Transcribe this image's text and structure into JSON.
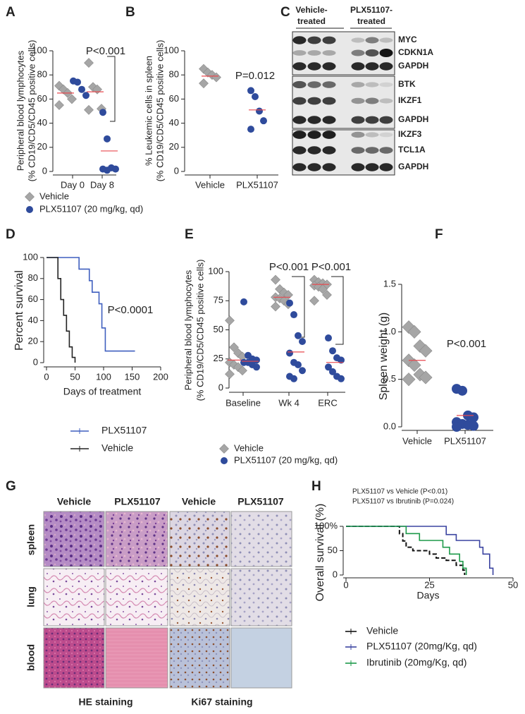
{
  "panels": [
    "A",
    "B",
    "C",
    "D",
    "E",
    "F",
    "G",
    "H"
  ],
  "chart_data": [
    {
      "type": "scatter",
      "ylabel": [
        "Peripheral blood lymphocytes",
        "(% CD19/CD5/CD45 positive cells)"
      ],
      "categories": [
        "Day 0",
        "Day 8"
      ],
      "ylim": [
        0,
        100
      ],
      "yticks": [
        0,
        20,
        40,
        60,
        80,
        100
      ],
      "annotations": [
        "P<0.001"
      ],
      "mean_color": "#e8494f",
      "series": [
        {
          "name": "Vehicle",
          "color": "#a6a6a6",
          "marker": "diamond",
          "values": [
            [
              71,
              68,
              65,
              60,
              55
            ],
            [
              90,
              70,
              68,
              52,
              51
            ]
          ],
          "means": [
            65,
            66
          ]
        },
        {
          "name": "PLX51107 (20 mg/kg, qd)",
          "color": "#2f4b9c",
          "marker": "circle",
          "values": [
            [
              75,
              74,
              68,
              63
            ],
            [
              49,
              27,
              3,
              2,
              2,
              1
            ]
          ],
          "means": [
            null,
            17
          ]
        }
      ]
    },
    {
      "type": "scatter",
      "ylabel": [
        "% Leukemic cells in spleen",
        "(% CD19/CD5/CD45 positive cells)"
      ],
      "categories": [
        "Vehicle",
        "PLX51107"
      ],
      "ylim": [
        0,
        100
      ],
      "yticks": [
        0,
        20,
        40,
        60,
        80,
        100
      ],
      "annotations": [
        "P=0.012"
      ],
      "mean_color": "#e8494f",
      "series": [
        {
          "color": "#a6a6a6",
          "marker": "diamond",
          "values": [
            [
              85,
              82,
              80,
              78,
              73
            ],
            []
          ],
          "means": [
            79,
            null
          ]
        },
        {
          "color": "#2f4b9c",
          "marker": "circle",
          "values": [
            [],
            [
              67,
              62,
              50,
              42,
              35
            ]
          ],
          "means": [
            null,
            51
          ]
        }
      ]
    },
    {
      "type": "line",
      "ylabel": "Percent survival",
      "xlabel": "Days of treatment",
      "xlim": [
        0,
        200
      ],
      "xticks": [
        0,
        50,
        100,
        150,
        200
      ],
      "ylim": [
        0,
        100
      ],
      "yticks": [
        0,
        20,
        40,
        60,
        80,
        100
      ],
      "annotations": [
        "P<0.0001"
      ],
      "step": true,
      "series": [
        {
          "name": "PLX51107",
          "color": "#3f5fbf",
          "x": [
            0,
            50,
            57,
            75,
            80,
            92,
            97,
            103,
            155
          ],
          "y": [
            100,
            100,
            89,
            78,
            67,
            56,
            33,
            11,
            11
          ]
        },
        {
          "name": "Vehicle",
          "color": "#222222",
          "x": [
            0,
            15,
            20,
            25,
            30,
            35,
            40,
            45,
            50
          ],
          "y": [
            100,
            100,
            80,
            60,
            45,
            30,
            15,
            5,
            0
          ]
        }
      ]
    },
    {
      "type": "scatter",
      "ylabel": [
        "Peripheral blood lymphocytes",
        "(% CD19/CD5/CD45 positive cells)"
      ],
      "categories": [
        "Baseline",
        "Wk 4",
        "ERC"
      ],
      "ylim": [
        0,
        100
      ],
      "yticks": [
        0,
        25,
        50,
        75,
        100
      ],
      "annotations": [
        "P<0.001",
        "P<0.001"
      ],
      "mean_color": "#e8494f",
      "series": [
        {
          "name": "Vehicle",
          "color": "#a6a6a6",
          "marker": "diamond",
          "values": [
            [
              58,
              35,
              30,
              27,
              22,
              20,
              18,
              15,
              12
            ],
            [
              93,
              85,
              82,
              80,
              78,
              77,
              75,
              72,
              70
            ],
            [
              93,
              91,
              90,
              89,
              88,
              87,
              85,
              80,
              75
            ]
          ],
          "means": [
            24,
            78,
            89
          ]
        },
        {
          "name": "PLX51107 (20 mg/kg, qd)",
          "color": "#2f4b9c",
          "marker": "circle",
          "values": [
            [
              74,
              28,
              25,
              24,
              22,
              22,
              20,
              18
            ],
            [
              73,
              63,
              45,
              40,
              30,
              22,
              20,
              15,
              10,
              8
            ],
            [
              43,
              32,
              26,
              24,
              18,
              14,
              10,
              8
            ]
          ],
          "means": [
            23,
            31,
            22
          ]
        }
      ]
    },
    {
      "type": "scatter",
      "ylabel": "Spleen weight  (g)",
      "categories": [
        "Vehicle",
        "PLX51107"
      ],
      "ylim": [
        0,
        1.5
      ],
      "yticks": [
        {
          "value": 0,
          "label": "0.0"
        },
        0.5,
        {
          "value": 1,
          "label": "1.0"
        },
        1.5
      ],
      "annotations": [
        "P<0.001"
      ],
      "mean_color": "#e8494f",
      "series": [
        {
          "color": "#a6a6a6",
          "marker": "diamond",
          "values": [
            [
              1.05,
              1.0,
              0.85,
              0.8,
              0.7,
              0.65,
              0.55,
              0.52,
              0.5
            ],
            []
          ],
          "means": [
            0.7,
            null
          ]
        },
        {
          "color": "#2f4b9c",
          "marker": "circle",
          "values": [
            [],
            [
              0.4,
              0.38,
              0.12,
              0.1,
              0.05,
              0.03,
              0.02,
              0.01,
              0
            ]
          ],
          "means": [
            null,
            0.12
          ]
        }
      ]
    },
    {
      "type": "line",
      "annotations": [
        "PLX51107 vs Vehicle (P<0.01)",
        "PLX51107 vs Ibrutinib (P=0.024)"
      ],
      "ylabel": "Overall survival (%)",
      "xlabel": "Days",
      "xlim": [
        0,
        50
      ],
      "xticks": [
        0,
        25,
        50
      ],
      "ylim": [
        0,
        100
      ],
      "yticks": [
        0,
        50,
        {
          "value": 100,
          "label": "100%"
        }
      ],
      "step": true,
      "series": [
        {
          "name": "Vehicle",
          "color": "#111111",
          "dash": true,
          "x": [
            0,
            16,
            17,
            18,
            20,
            25,
            27,
            30,
            33,
            35,
            35.5
          ],
          "y": [
            100,
            85,
            70,
            57,
            50,
            43,
            35,
            30,
            20,
            10,
            0
          ]
        },
        {
          "name": "PLX51107 (20mg/Kg, qd)",
          "color": "#3a43a0",
          "x": [
            0,
            30,
            33,
            40,
            41,
            43,
            44
          ],
          "y": [
            100,
            83,
            71,
            57,
            43,
            14,
            0
          ]
        },
        {
          "name": "Ibrutinib (20mg/Kg, qd)",
          "color": "#1e9a4a",
          "x": [
            0,
            18,
            22,
            29,
            31,
            34,
            35,
            36
          ],
          "y": [
            100,
            85,
            71,
            57,
            43,
            28,
            14,
            0
          ]
        }
      ]
    }
  ],
  "blot": {
    "groups": [
      [
        "Vehicle-",
        "treated"
      ],
      [
        "PLX51107-",
        "treated"
      ]
    ],
    "rows": [
      "MYC",
      "CDKN1A",
      "GAPDH",
      "BTK",
      "IKZF1",
      "GAPDH",
      "IKZF3",
      "TCL1A",
      "GAPDH"
    ]
  },
  "histology": {
    "columns": [
      "Vehicle",
      "PLX51107",
      "Vehicle",
      "PLX51107"
    ],
    "rows": [
      "spleen",
      "lung",
      "blood"
    ],
    "stains": [
      "HE staining",
      "Ki67 staining"
    ]
  }
}
